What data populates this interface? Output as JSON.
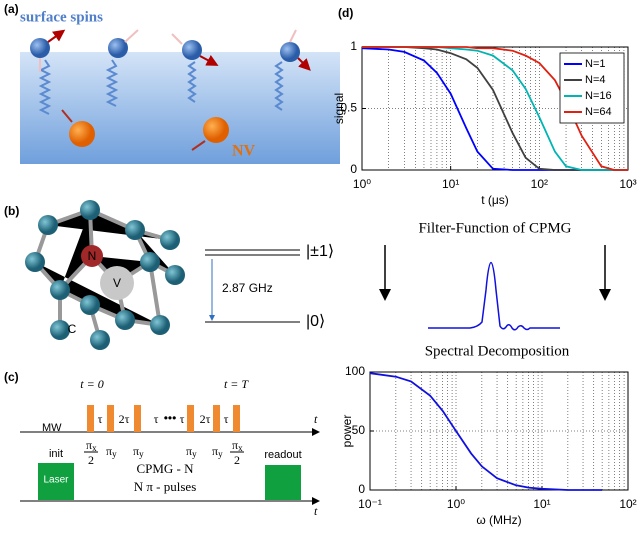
{
  "panel_a": {
    "label": "(a)",
    "spins": "surface spins",
    "nv": "NV"
  },
  "panel_b": {
    "label": "(b)",
    "atom_n": "N",
    "atom_v": "V",
    "atom_c": "C",
    "upper": "|±1⟩",
    "lower": "|0⟩",
    "gap": "2.87 GHz"
  },
  "panel_c": {
    "label": "(c)",
    "t0": "t = 0",
    "tT": "t = T",
    "mw": "MW",
    "init": "init",
    "laser": "Laser",
    "readout": "readout",
    "cpmg": "CPMG  - N",
    "npulses": "N π - pulses",
    "taxis1": "t",
    "taxis2": "t",
    "dots": "•••",
    "delays": [
      "τ",
      "2τ",
      "τ",
      "τ",
      "2τ",
      "τ"
    ],
    "pulses": [
      {
        "sym": "π",
        "sub": "x",
        "den": "2"
      },
      {
        "sym": "π",
        "sub": "y"
      },
      {
        "sym": "π",
        "sub": "y"
      },
      {
        "sym": "π",
        "sub": "y"
      },
      {
        "sym": "π",
        "sub": "y"
      },
      {
        "sym": "π",
        "sub": "x",
        "den": "2"
      }
    ]
  },
  "panel_d": {
    "label": "(d)",
    "filter_title": "Filter-Function of CPMG",
    "spectral_title": "Spectral Decomposition"
  },
  "chart_data": [
    {
      "type": "line",
      "xlabel": "t (μs)",
      "ylabel": "signal",
      "xlog": true,
      "grid": true,
      "legend": "upper right",
      "x": [
        1,
        2,
        3,
        5,
        7,
        10,
        15,
        20,
        30,
        50,
        70,
        100,
        150,
        200,
        300,
        500,
        700,
        1000
      ],
      "xlim": [
        1,
        1000
      ],
      "ylim": [
        0,
        1
      ],
      "xticks": [
        {
          "value": 1,
          "label": "10⁰"
        },
        {
          "value": 10,
          "label": "10¹"
        },
        {
          "value": 100,
          "label": "10²"
        },
        {
          "value": 1000,
          "label": "10³"
        }
      ],
      "yticks": [
        0,
        0.5,
        1
      ],
      "series": [
        {
          "name": "N=1",
          "color": "#0000ff",
          "values": [
            0.99,
            0.98,
            0.96,
            0.89,
            0.79,
            0.62,
            0.34,
            0.15,
            0.01,
            0,
            0,
            0,
            0,
            0,
            0,
            0,
            0,
            0
          ]
        },
        {
          "name": "N=4",
          "color": "#404040",
          "values": [
            1,
            1,
            1,
            0.99,
            0.98,
            0.95,
            0.9,
            0.83,
            0.65,
            0.3,
            0.1,
            0.01,
            0,
            0,
            0,
            0,
            0,
            0
          ]
        },
        {
          "name": "N=16",
          "color": "#00b4b4",
          "values": [
            1,
            1,
            1,
            1,
            1,
            0.99,
            0.98,
            0.97,
            0.93,
            0.81,
            0.66,
            0.43,
            0.15,
            0.03,
            0,
            0,
            0,
            0
          ]
        },
        {
          "name": "N=64",
          "color": "#e02010",
          "values": [
            1,
            1,
            1,
            1,
            1,
            1,
            1,
            0.99,
            0.99,
            0.97,
            0.93,
            0.87,
            0.73,
            0.56,
            0.28,
            0.03,
            0,
            0
          ]
        }
      ]
    },
    {
      "type": "line",
      "xlabel": "ω (MHz)",
      "ylabel": "power",
      "xlog": true,
      "grid": true,
      "x": [
        0.1,
        0.2,
        0.3,
        0.5,
        0.7,
        1,
        1.5,
        2,
        3,
        5,
        7,
        10,
        20,
        50
      ],
      "xlim": [
        0.1,
        100
      ],
      "ylim": [
        0,
        100
      ],
      "xticks": [
        {
          "value": 0.1,
          "label": "10⁻¹"
        },
        {
          "value": 1,
          "label": "10⁰"
        },
        {
          "value": 10,
          "label": "10¹"
        },
        {
          "value": 100,
          "label": "10²"
        }
      ],
      "yticks": [
        0,
        50,
        100
      ],
      "series": [
        {
          "name": "power",
          "color": "#1010e0",
          "values": [
            99,
            96,
            92,
            80,
            67,
            50,
            31,
            20,
            10,
            4,
            2,
            1,
            0,
            0
          ]
        }
      ]
    }
  ]
}
